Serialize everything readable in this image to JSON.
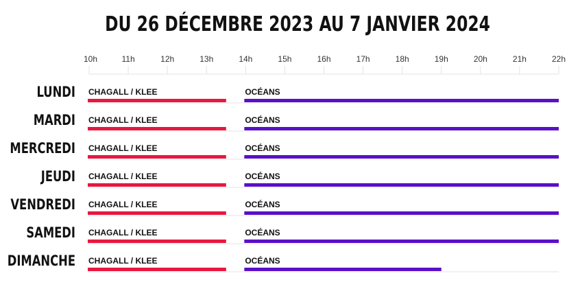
{
  "chart_data": {
    "type": "timeline",
    "title": "DU 26 DÉCEMBRE 2023 AU 7 JANVIER 2024",
    "xlim": [
      10,
      22
    ],
    "ticks": [
      {
        "h": 10,
        "label": "10h"
      },
      {
        "h": 11,
        "label": "11h"
      },
      {
        "h": 12,
        "label": "12h"
      },
      {
        "h": 13,
        "label": "13h"
      },
      {
        "h": 14,
        "label": "14h"
      },
      {
        "h": 15,
        "label": "15h"
      },
      {
        "h": 16,
        "label": "16h"
      },
      {
        "h": 17,
        "label": "17h"
      },
      {
        "h": 18,
        "label": "18h"
      },
      {
        "h": 19,
        "label": "19h"
      },
      {
        "h": 20,
        "label": "20h"
      },
      {
        "h": 21,
        "label": "21h"
      },
      {
        "h": 22,
        "label": "22h"
      }
    ],
    "colors": {
      "chagall": "#e8173f",
      "oceans": "#5a0fc8",
      "grid": "#e3e3e3",
      "baseline": "#e3e3e3"
    },
    "days": [
      {
        "day": "LUNDI",
        "bars": [
          {
            "label": "CHAGALL / KLEE",
            "start": 10,
            "end": 13.5,
            "color": "#e8173f"
          },
          {
            "label": "OCÉANS",
            "start": 14,
            "end": 22,
            "color": "#5a0fc8"
          }
        ]
      },
      {
        "day": "MARDI",
        "bars": [
          {
            "label": "CHAGALL / KLEE",
            "start": 10,
            "end": 13.5,
            "color": "#e8173f"
          },
          {
            "label": "OCÉANS",
            "start": 14,
            "end": 22,
            "color": "#5a0fc8"
          }
        ]
      },
      {
        "day": "MERCREDI",
        "bars": [
          {
            "label": "CHAGALL / KLEE",
            "start": 10,
            "end": 13.5,
            "color": "#e8173f"
          },
          {
            "label": "OCÉANS",
            "start": 14,
            "end": 22,
            "color": "#5a0fc8"
          }
        ]
      },
      {
        "day": "JEUDI",
        "bars": [
          {
            "label": "CHAGALL / KLEE",
            "start": 10,
            "end": 13.5,
            "color": "#e8173f"
          },
          {
            "label": "OCÉANS",
            "start": 14,
            "end": 22,
            "color": "#5a0fc8"
          }
        ]
      },
      {
        "day": "VENDREDI",
        "bars": [
          {
            "label": "CHAGALL / KLEE",
            "start": 10,
            "end": 13.5,
            "color": "#e8173f"
          },
          {
            "label": "OCÉANS",
            "start": 14,
            "end": 22,
            "color": "#5a0fc8"
          }
        ]
      },
      {
        "day": "SAMEDI",
        "bars": [
          {
            "label": "CHAGALL / KLEE",
            "start": 10,
            "end": 13.5,
            "color": "#e8173f"
          },
          {
            "label": "OCÉANS",
            "start": 14,
            "end": 22,
            "color": "#5a0fc8"
          }
        ]
      },
      {
        "day": "DIMANCHE",
        "bars": [
          {
            "label": "CHAGALL / KLEE",
            "start": 10,
            "end": 13.5,
            "color": "#e8173f"
          },
          {
            "label": "OCÉANS",
            "start": 14,
            "end": 19,
            "color": "#5a0fc8"
          }
        ]
      }
    ]
  }
}
